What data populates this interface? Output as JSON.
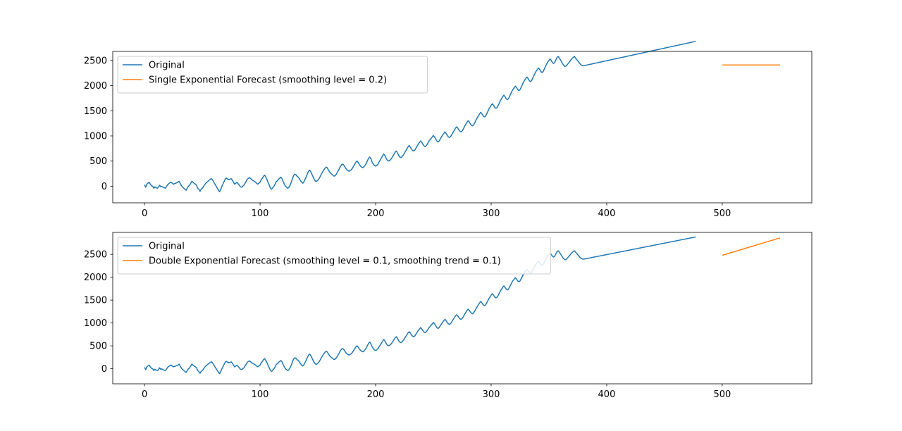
{
  "chart_data": [
    {
      "type": "line",
      "x_ticks": [
        0,
        100,
        200,
        300,
        400,
        500
      ],
      "y_ticks": [
        0,
        500,
        1000,
        1500,
        2000,
        2500
      ],
      "xlim": [
        -27.5,
        577.5
      ],
      "ylim": [
        -330,
        2680
      ],
      "grid": false,
      "legend_position": "upper-left",
      "series": [
        {
          "name": "Original",
          "color": "#1f77b4",
          "x_start": 0,
          "x_step": 1,
          "values": [
            30,
            -20,
            40,
            60,
            80,
            40,
            10,
            0,
            -40,
            -10,
            -30,
            -40,
            -20,
            20,
            -10,
            -5,
            -20,
            -30,
            -40,
            -10,
            30,
            50,
            70,
            80,
            60,
            40,
            50,
            60,
            70,
            80,
            100,
            50,
            10,
            -20,
            -40,
            -60,
            -80,
            -40,
            0,
            20,
            60,
            100,
            80,
            60,
            40,
            20,
            -40,
            -60,
            -100,
            -60,
            -40,
            -10,
            30,
            60,
            80,
            100,
            120,
            140,
            150,
            120,
            80,
            40,
            0,
            -40,
            -80,
            -110,
            -60,
            0,
            50,
            100,
            150,
            160,
            140,
            130,
            140,
            150,
            120,
            80,
            40,
            60,
            80,
            50,
            20,
            -10,
            -20,
            0,
            20,
            60,
            100,
            140,
            160,
            170,
            150,
            130,
            110,
            100,
            80,
            60,
            40,
            60,
            80,
            130,
            160,
            200,
            220,
            180,
            130,
            70,
            20,
            -40,
            -60,
            -30,
            0,
            40,
            90,
            110,
            140,
            160,
            180,
            150,
            90,
            40,
            0,
            -20,
            -40,
            -20,
            20,
            80,
            150,
            210,
            240,
            230,
            200,
            180,
            150,
            110,
            80,
            60,
            90,
            140,
            190,
            250,
            300,
            320,
            280,
            230,
            180,
            130,
            100,
            100,
            120,
            150,
            190,
            240,
            280,
            320,
            350,
            380,
            370,
            330,
            290,
            260,
            240,
            220,
            200,
            210,
            240,
            280,
            320,
            370,
            410,
            440,
            430,
            400,
            360,
            330,
            310,
            300,
            310,
            330,
            360,
            400,
            440,
            480,
            500,
            470,
            430,
            400,
            380,
            370,
            390,
            420,
            460,
            510,
            560,
            580,
            540,
            480,
            440,
            410,
            400,
            410,
            440,
            480,
            520,
            560,
            600,
            640,
            610,
            560,
            520,
            500,
            510,
            530,
            560,
            600,
            640,
            680,
            700,
            660,
            610,
            580,
            570,
            590,
            620,
            660,
            700,
            740,
            780,
            810,
            780,
            740,
            710,
            700,
            720,
            760,
            800,
            840,
            870,
            900,
            870,
            830,
            800,
            790,
            810,
            850,
            890,
            920,
            950,
            980,
            1010,
            980,
            940,
            900,
            880,
            900,
            940,
            980,
            1020,
            1050,
            1080,
            1050,
            1010,
            980,
            970,
            990,
            1030,
            1070,
            1110,
            1150,
            1180,
            1160,
            1120,
            1090,
            1080,
            1100,
            1140,
            1190,
            1230,
            1270,
            1300,
            1280,
            1240,
            1210,
            1200,
            1230,
            1270,
            1320,
            1360,
            1400,
            1440,
            1470,
            1440,
            1400,
            1380,
            1390,
            1430,
            1480,
            1530,
            1570,
            1610,
            1640,
            1610,
            1570,
            1550,
            1560,
            1600,
            1650,
            1700,
            1740,
            1780,
            1810,
            1780,
            1740,
            1720,
            1740,
            1790,
            1840,
            1890,
            1930,
            1960,
            1990,
            1960,
            1920,
            1900,
            1920,
            1970,
            2020,
            2070,
            2110,
            2140,
            2170,
            2140,
            2100,
            2080,
            2100,
            2150,
            2200,
            2250,
            2290,
            2320,
            2350,
            2320,
            2280,
            2260,
            2280,
            2330,
            2380,
            2430,
            2470,
            2500,
            2530,
            2500,
            2460,
            2440,
            2460,
            2510,
            2560,
            2580,
            2550,
            2510,
            2470,
            2430,
            2400,
            2380,
            2390,
            2420,
            2450,
            2480,
            2510,
            2540,
            2560,
            2580,
            2550,
            2520,
            2490,
            2460,
            2430,
            2410,
            2400,
            2395,
            2400,
            2405,
            2410,
            2415,
            2420,
            2425,
            2430,
            2435,
            2440,
            2445,
            2450,
            2455,
            2460,
            2465,
            2470,
            2475,
            2480,
            2485,
            2490,
            2495,
            2500,
            2505,
            2510,
            2515,
            2520,
            2525,
            2530,
            2535,
            2540,
            2545,
            2550,
            2555,
            2560,
            2565,
            2570,
            2575,
            2580,
            2585,
            2590,
            2595,
            2600,
            2605,
            2610,
            2615,
            2620,
            2625,
            2630,
            2635,
            2640,
            2645,
            2650,
            2655,
            2660,
            2665,
            2670,
            2675,
            2680,
            2685,
            2690,
            2695,
            2700,
            2705,
            2710,
            2715,
            2720,
            2725,
            2730,
            2735,
            2740,
            2745,
            2750,
            2755,
            2760,
            2765,
            2770,
            2775,
            2780,
            2785,
            2790,
            2795,
            2800,
            2805,
            2810,
            2815,
            2820,
            2825,
            2830,
            2835,
            2840,
            2845,
            2850,
            2855,
            2860,
            2865,
            2870,
            2875,
            2880
          ]
        },
        {
          "name": "Single Exponential Forecast (smoothing level = 0.2)",
          "color": "#ff7f0e",
          "x": [
            500,
            550
          ],
          "values": [
            2410,
            2410
          ]
        }
      ]
    },
    {
      "type": "line",
      "x_ticks": [
        0,
        100,
        200,
        300,
        400,
        500
      ],
      "y_ticks": [
        0,
        500,
        1000,
        1500,
        2000,
        2500
      ],
      "xlim": [
        -27.5,
        577.5
      ],
      "ylim": [
        -330,
        2980
      ],
      "grid": false,
      "legend_position": "upper-left",
      "series": [
        {
          "name": "Original",
          "color": "#1f77b4",
          "x_start": 0,
          "x_step": 1,
          "values": []
        },
        {
          "name": "Double Exponential Forecast (smoothing level = 0.1, smoothing trend = 0.1)",
          "color": "#ff7f0e",
          "x": [
            500,
            550
          ],
          "values": [
            2480,
            2860
          ]
        }
      ]
    }
  ]
}
